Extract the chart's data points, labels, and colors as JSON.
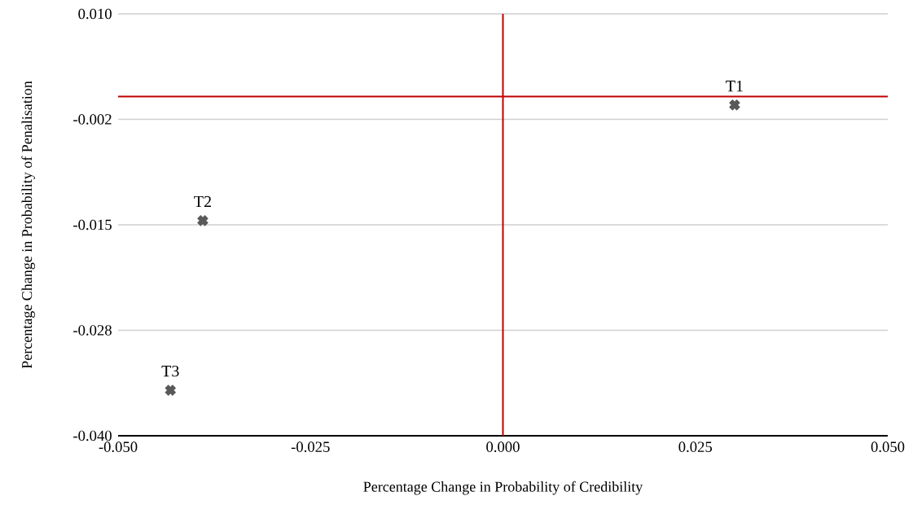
{
  "chart_data": {
    "type": "scatter",
    "xlabel": "Percentage Change in Probability of Credibility",
    "ylabel": "Percentage Change in Probability of  Penalisation",
    "series": [
      {
        "color": "#595959",
        "x": [
          0.0301,
          -0.039,
          -0.0432
        ],
        "values": [
          -0.0008,
          -0.0145,
          -0.0346
        ]
      }
    ],
    "annotations": [
      {
        "text": "T1",
        "x": 0.0301,
        "y": -0.0008
      },
      {
        "text": "T2",
        "x": -0.039,
        "y": -0.0145
      },
      {
        "text": "T3",
        "x": -0.0432,
        "y": -0.0346
      }
    ],
    "xlim": [
      -0.05,
      0.05
    ],
    "xticks": [
      {
        "value": -0.05,
        "label": "-0.050"
      },
      {
        "value": -0.025,
        "label": "-0.025"
      },
      {
        "value": 0,
        "label": "0.000"
      },
      {
        "value": 0.025,
        "label": "0.025"
      },
      {
        "value": 0.05,
        "label": "0.050"
      }
    ],
    "ylim": [
      -0.04,
      0.01
    ],
    "yticks": [
      {
        "value": -0.04,
        "label": "-0.040"
      },
      {
        "value": -0.0275,
        "label": "-0.028"
      },
      {
        "value": -0.015,
        "label": "-0.015"
      },
      {
        "value": -0.0025,
        "label": "-0.002"
      },
      {
        "value": 0.01,
        "label": "0.010"
      }
    ],
    "ref_lines": [
      {
        "axis": "x",
        "value": 0,
        "color": "#c00000"
      },
      {
        "axis": "y",
        "value": 0.0002,
        "color": "#c00000"
      }
    ],
    "grid": "y",
    "marker": "cross"
  }
}
